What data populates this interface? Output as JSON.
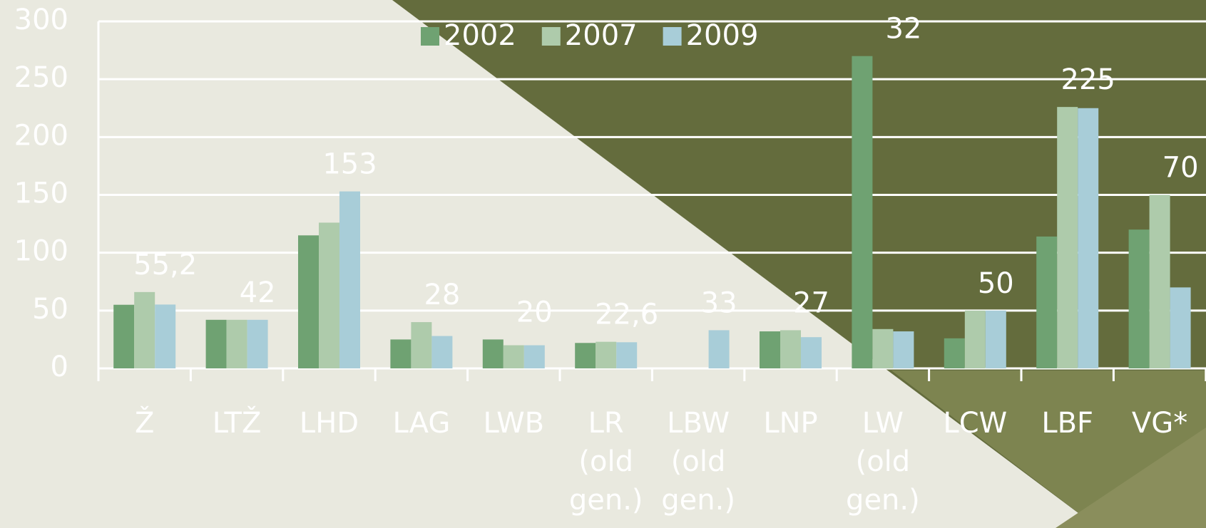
{
  "chart_data": {
    "type": "bar",
    "categories": [
      "Ž",
      "LTŽ",
      "LHD",
      "LAG",
      "LWB",
      "LR (old gen.)",
      "LBW (old gen.)",
      "LNP",
      "LW (old gen.)",
      "LCW",
      "LBF",
      "VG*"
    ],
    "series": [
      {
        "name": "2002",
        "color": "#6fa272",
        "values": [
          55,
          42,
          115,
          25,
          25,
          22,
          null,
          32,
          270,
          26,
          114,
          120
        ]
      },
      {
        "name": "2007",
        "color": "#aecbab",
        "values": [
          66,
          42,
          126,
          40,
          20,
          23,
          null,
          33,
          34,
          50,
          226,
          150
        ]
      },
      {
        "name": "2009",
        "color": "#a8cdd8",
        "values": [
          55.2,
          42,
          153,
          28,
          20,
          22.6,
          33,
          27,
          32,
          50,
          225,
          70
        ],
        "value_labels": [
          "55,2",
          "42",
          "153",
          "28",
          "20",
          "22,6",
          "33",
          "27",
          "32",
          "50",
          "225",
          "70"
        ]
      }
    ],
    "ylim": [
      0,
      300
    ],
    "yticks": [
      0,
      50,
      100,
      150,
      200,
      250,
      300
    ],
    "grid": true,
    "legend": "top"
  }
}
